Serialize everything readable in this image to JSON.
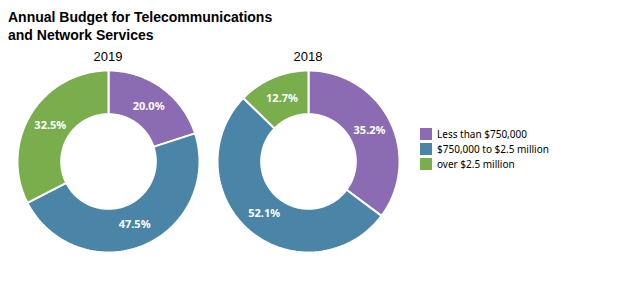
{
  "chart_data": {
    "type": "pie",
    "title": [
      "Annual Budget for Telecommunications",
      "and Network Services"
    ],
    "categories": [
      "Less than $750,000",
      "$750,000 to $2.5 million",
      "over $2.5 million"
    ],
    "colors": [
      "#8B6BB1",
      "#4a85a8",
      "#7aad4c"
    ],
    "series": [
      {
        "name": "2019",
        "values": [
          20.0,
          47.5,
          32.5
        ],
        "value_labels": [
          "20.0%",
          "47.5%",
          "32.5%"
        ]
      },
      {
        "name": "2018",
        "values": [
          35.2,
          52.1,
          12.7
        ],
        "value_labels": [
          "35.2%",
          "52.1%",
          "12.7%"
        ]
      }
    ],
    "data_labels": true,
    "legend": "right"
  }
}
